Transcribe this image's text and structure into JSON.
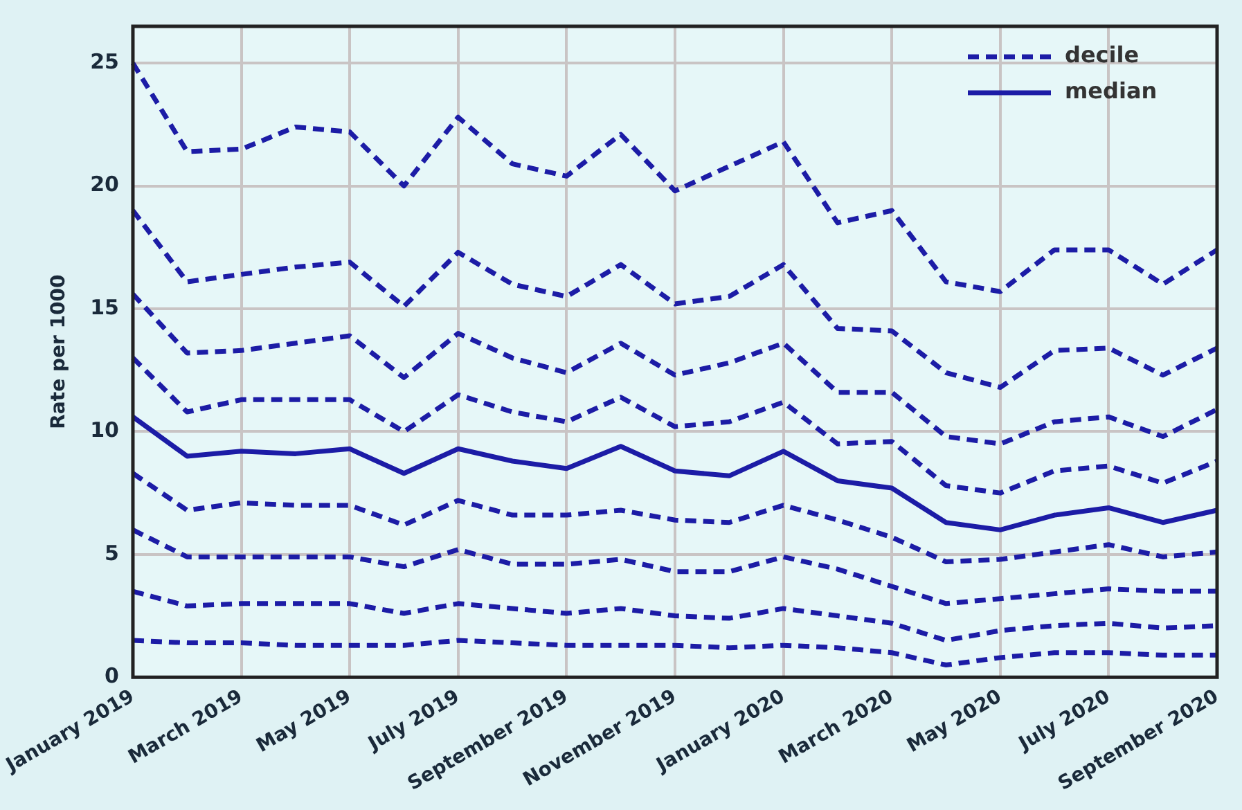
{
  "chart_data": {
    "type": "line",
    "ylabel": "Rate per 1000",
    "categories": [
      "January 2019",
      null,
      "March 2019",
      null,
      "May 2019",
      null,
      "July 2019",
      null,
      "September 2019",
      null,
      "November 2019",
      null,
      "January 2020",
      null,
      "March 2020",
      null,
      "May 2020",
      null,
      "July 2020",
      null,
      "September 2020"
    ],
    "ylim": [
      0,
      26.5
    ],
    "yticks": [
      0,
      5,
      10,
      15,
      20,
      25
    ],
    "grid": true,
    "legend": "top right",
    "marker": "none",
    "series": [
      {
        "name": "decile",
        "color": "#1c1ca6",
        "line_style": "dashed",
        "values": [
          25.0,
          21.4,
          21.5,
          22.4,
          22.2,
          20.0,
          22.8,
          20.9,
          20.4,
          22.1,
          19.8,
          20.8,
          21.8,
          18.5,
          19.0,
          16.1,
          15.7,
          17.4,
          17.4,
          16.0,
          17.4
        ]
      },
      {
        "color": "#1c1ca6",
        "line_style": "dashed",
        "values": [
          19.0,
          16.1,
          16.4,
          16.7,
          16.9,
          15.1,
          17.3,
          16.0,
          15.5,
          16.8,
          15.2,
          15.5,
          16.8,
          14.2,
          14.1,
          12.4,
          11.8,
          13.3,
          13.4,
          12.3,
          13.4
        ]
      },
      {
        "color": "#1c1ca6",
        "line_style": "dashed",
        "values": [
          15.6,
          13.2,
          13.3,
          13.6,
          13.9,
          12.2,
          14.0,
          13.0,
          12.4,
          13.6,
          12.3,
          12.8,
          13.6,
          11.6,
          11.6,
          9.8,
          9.5,
          10.4,
          10.6,
          9.8,
          10.9
        ]
      },
      {
        "color": "#1c1ca6",
        "line_style": "dashed",
        "values": [
          13.0,
          10.8,
          11.3,
          11.3,
          11.3,
          10.0,
          11.5,
          10.8,
          10.4,
          11.4,
          10.2,
          10.4,
          11.2,
          9.5,
          9.6,
          7.8,
          7.5,
          8.4,
          8.6,
          7.9,
          8.8
        ]
      },
      {
        "name": "median",
        "color": "#1c1ca6",
        "line_style": "solid",
        "values": [
          10.6,
          9.0,
          9.2,
          9.1,
          9.3,
          8.3,
          9.3,
          8.8,
          8.5,
          9.4,
          8.4,
          8.2,
          9.2,
          8.0,
          7.7,
          6.3,
          6.0,
          6.6,
          6.9,
          6.3,
          6.8
        ]
      },
      {
        "color": "#1c1ca6",
        "line_style": "dashed",
        "values": [
          8.3,
          6.8,
          7.1,
          7.0,
          7.0,
          6.2,
          7.2,
          6.6,
          6.6,
          6.8,
          6.4,
          6.3,
          7.0,
          6.4,
          5.7,
          4.7,
          4.8,
          5.1,
          5.4,
          4.9,
          5.1
        ]
      },
      {
        "color": "#1c1ca6",
        "line_style": "dashed",
        "values": [
          6.0,
          4.9,
          4.9,
          4.9,
          4.9,
          4.5,
          5.2,
          4.6,
          4.6,
          4.8,
          4.3,
          4.3,
          4.9,
          4.4,
          3.7,
          3.0,
          3.2,
          3.4,
          3.6,
          3.5,
          3.5
        ]
      },
      {
        "color": "#1c1ca6",
        "line_style": "dashed",
        "values": [
          3.5,
          2.9,
          3.0,
          3.0,
          3.0,
          2.6,
          3.0,
          2.8,
          2.6,
          2.8,
          2.5,
          2.4,
          2.8,
          2.5,
          2.2,
          1.5,
          1.9,
          2.1,
          2.2,
          2.0,
          2.1
        ]
      },
      {
        "color": "#1c1ca6",
        "line_style": "dashed",
        "values": [
          1.5,
          1.4,
          1.4,
          1.3,
          1.3,
          1.3,
          1.5,
          1.4,
          1.3,
          1.3,
          1.3,
          1.2,
          1.3,
          1.2,
          1.0,
          0.5,
          0.8,
          1.0,
          1.0,
          0.9,
          0.9
        ]
      }
    ]
  }
}
